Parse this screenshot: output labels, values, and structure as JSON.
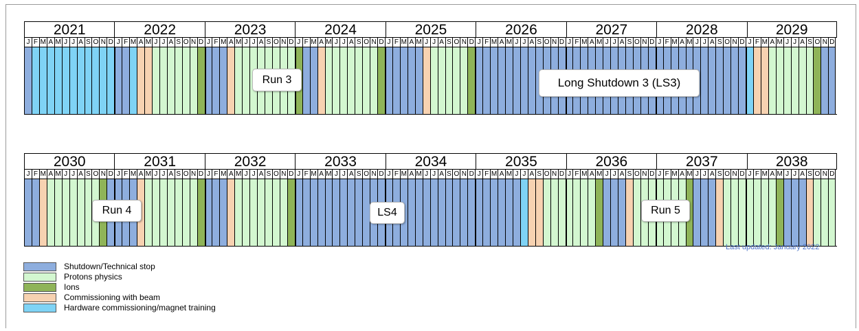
{
  "colors": {
    "shutdown": "#8eaede",
    "protons": "#d3f7d0",
    "ions": "#8fb458",
    "commissioning": "#f7d2b1",
    "hardware": "#7fd3f5"
  },
  "rows": [
    {
      "years": [
        "2021",
        "2022",
        "2023",
        "2024",
        "2025",
        "2026",
        "2027",
        "2028",
        "2029"
      ],
      "months": "JFMAMJJASOND",
      "schedule": "SHHHHHHHHHHHSSHCCPPPPPPISSSCPPPPPPPPISSCPPPPPPPISSSSSCPPPPPISSSSSSSSSSSSSSSSSSSSSSSSSSSSSSSSSSSSHCCPPPPPPI"
    },
    {
      "years": [
        "2030",
        "2031",
        "2032",
        "2033",
        "2034",
        "2035",
        "2036",
        "2037",
        "2038"
      ],
      "months": "JFMAMJJASOND",
      "schedule": "SSCPPPPPPPISSSSCPPPPPPPISSSCPPPPPPPISSSSSSSSSSSSSSSSSSSSSSSSSSSSSSHCCPPPPPPPISSSCPPPPPPPISSSCPPPPPPPISSSCPPPPPPPIS"
    }
  ],
  "labels": {
    "run3": "Run 3",
    "ls3": "Long Shutdown 3 (LS3)",
    "run4": "Run 4",
    "ls4": "LS4",
    "run5": "Run 5"
  },
  "updated": "Last updated: January 2022",
  "legend": [
    {
      "key": "shutdown",
      "label": "Shutdown/Technical stop"
    },
    {
      "key": "protons",
      "label": "Protons physics"
    },
    {
      "key": "ions",
      "label": "Ions"
    },
    {
      "key": "commissioning",
      "label": "Commissioning with beam"
    },
    {
      "key": "hardware",
      "label": "Hardware commissioning/magnet training"
    }
  ]
}
